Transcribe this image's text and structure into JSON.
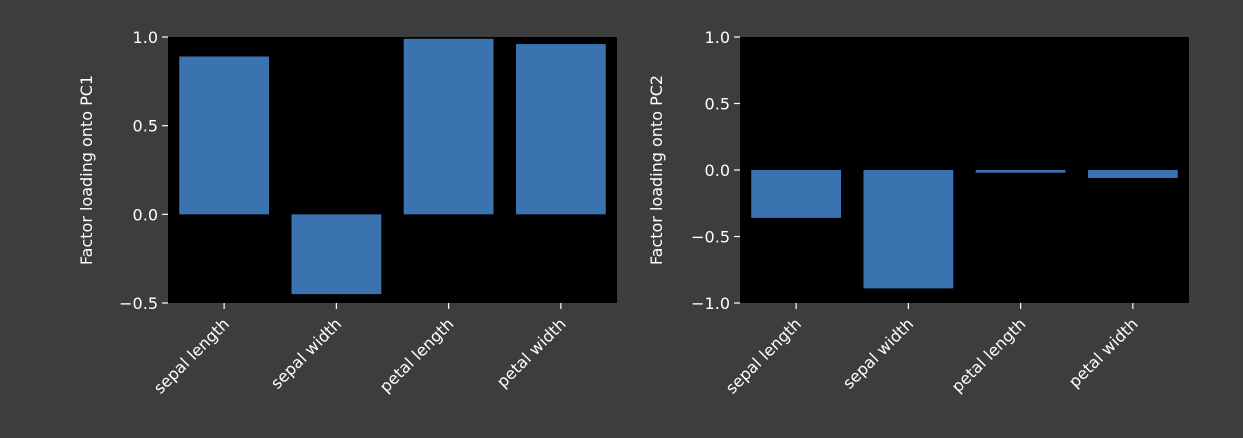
{
  "colors": {
    "figure_bg": "#3d3d3d",
    "axes_bg": "#000000",
    "bar": "#3a73b0",
    "text": "#ffffff",
    "tick": "#ffffff"
  },
  "chart_data": [
    {
      "type": "bar",
      "categories": [
        "sepal length",
        "sepal width",
        "petal length",
        "petal width"
      ],
      "values": [
        0.89,
        -0.45,
        0.99,
        0.96
      ],
      "title": "",
      "xlabel": "",
      "ylabel": "Factor loading onto PC1",
      "ylim": [
        -0.5,
        1.0
      ],
      "yticks": [
        1.0,
        0.5,
        0.0,
        -0.5
      ],
      "ytick_labels": [
        "1.0",
        "0.5",
        "0.0",
        "−0.5"
      ],
      "grid": false
    },
    {
      "type": "bar",
      "categories": [
        "sepal length",
        "sepal width",
        "petal length",
        "petal width"
      ],
      "values": [
        -0.36,
        -0.89,
        -0.02,
        -0.06
      ],
      "title": "",
      "xlabel": "",
      "ylabel": "Factor loading onto PC2",
      "ylim": [
        -1.0,
        1.0
      ],
      "yticks": [
        1.0,
        0.5,
        0.0,
        -0.5,
        -1.0
      ],
      "ytick_labels": [
        "1.0",
        "0.5",
        "0.0",
        "−0.5",
        "−1.0"
      ],
      "grid": false
    }
  ]
}
